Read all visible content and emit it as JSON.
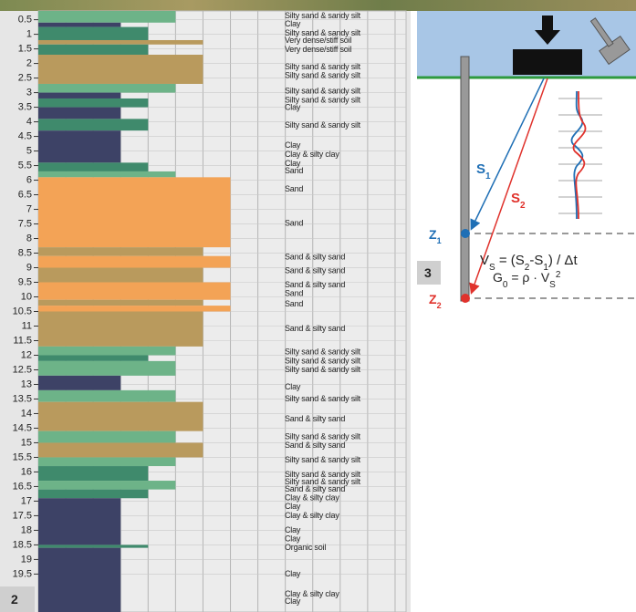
{
  "chart_data": {
    "type": "bar",
    "ylim": [
      0.2,
      20.8
    ],
    "yticks": [
      0.5,
      1,
      1.5,
      2,
      2.5,
      3,
      3.5,
      4,
      4.5,
      5,
      5.5,
      6,
      6.5,
      7,
      7.5,
      8,
      8.5,
      9,
      9.5,
      10,
      10.5,
      11,
      11.5,
      12,
      12.5,
      13,
      13.5,
      14,
      14.5,
      15,
      15.5,
      16,
      16.5,
      17,
      17.5,
      18,
      18.5,
      19,
      19.5
    ],
    "xlim": [
      0,
      13.4
    ],
    "xticks": [
      1,
      2,
      3,
      4,
      5,
      6,
      7,
      8,
      9,
      10,
      11,
      12,
      13
    ],
    "grid": true,
    "zones": [
      {
        "value": 3,
        "color": "#3d4266"
      },
      {
        "value": 4,
        "color": "#3f8a6c"
      },
      {
        "value": 5,
        "color": "#6db388"
      },
      {
        "value": 6,
        "color": "#b99a5d"
      },
      {
        "value": 7,
        "color": "#f3a356"
      }
    ],
    "layers": [
      {
        "top": 0.2,
        "bottom": 0.6,
        "zone": 5
      },
      {
        "top": 0.6,
        "bottom": 0.75,
        "zone": 3
      },
      {
        "top": 0.75,
        "bottom": 1.2,
        "zone": 4
      },
      {
        "top": 1.2,
        "bottom": 1.35,
        "zone": 6
      },
      {
        "top": 1.35,
        "bottom": 1.7,
        "zone": 4
      },
      {
        "top": 1.7,
        "bottom": 2.7,
        "zone": 6
      },
      {
        "top": 2.7,
        "bottom": 3.0,
        "zone": 5
      },
      {
        "top": 3.0,
        "bottom": 3.2,
        "zone": 3
      },
      {
        "top": 3.2,
        "bottom": 3.5,
        "zone": 4
      },
      {
        "top": 3.5,
        "bottom": 3.9,
        "zone": 3
      },
      {
        "top": 3.9,
        "bottom": 4.3,
        "zone": 4
      },
      {
        "top": 4.3,
        "bottom": 5.4,
        "zone": 3
      },
      {
        "top": 5.4,
        "bottom": 5.7,
        "zone": 4
      },
      {
        "top": 5.7,
        "bottom": 5.9,
        "zone": 5
      },
      {
        "top": 5.9,
        "bottom": 8.3,
        "zone": 7
      },
      {
        "top": 8.3,
        "bottom": 8.6,
        "zone": 6
      },
      {
        "top": 8.6,
        "bottom": 9.0,
        "zone": 7
      },
      {
        "top": 9.0,
        "bottom": 9.5,
        "zone": 6
      },
      {
        "top": 9.5,
        "bottom": 10.1,
        "zone": 7
      },
      {
        "top": 10.1,
        "bottom": 10.3,
        "zone": 6
      },
      {
        "top": 10.3,
        "bottom": 10.5,
        "zone": 7
      },
      {
        "top": 10.5,
        "bottom": 11.7,
        "zone": 6
      },
      {
        "top": 11.7,
        "bottom": 12.0,
        "zone": 5
      },
      {
        "top": 12.0,
        "bottom": 12.2,
        "zone": 4
      },
      {
        "top": 12.2,
        "bottom": 12.7,
        "zone": 5
      },
      {
        "top": 12.7,
        "bottom": 13.2,
        "zone": 3
      },
      {
        "top": 13.2,
        "bottom": 13.6,
        "zone": 5
      },
      {
        "top": 13.6,
        "bottom": 14.6,
        "zone": 6
      },
      {
        "top": 14.6,
        "bottom": 15.0,
        "zone": 5
      },
      {
        "top": 15.0,
        "bottom": 15.5,
        "zone": 6
      },
      {
        "top": 15.5,
        "bottom": 15.8,
        "zone": 5
      },
      {
        "top": 15.8,
        "bottom": 16.3,
        "zone": 4
      },
      {
        "top": 16.3,
        "bottom": 16.6,
        "zone": 5
      },
      {
        "top": 16.6,
        "bottom": 16.9,
        "zone": 4
      },
      {
        "top": 16.9,
        "bottom": 18.5,
        "zone": 3
      },
      {
        "top": 18.5,
        "bottom": 18.6,
        "zone": 4
      },
      {
        "top": 18.6,
        "bottom": 20.8,
        "zone": 3
      }
    ],
    "annotations": [
      {
        "depth": 0.37,
        "text": "Silty sand & sandy silt"
      },
      {
        "depth": 0.66,
        "text": "Clay"
      },
      {
        "depth": 0.97,
        "text": "Silty sand & sandy silt"
      },
      {
        "depth": 1.22,
        "text": "Very dense/stiff soil"
      },
      {
        "depth": 1.54,
        "text": "Very dense/stiff soil"
      },
      {
        "depth": 2.13,
        "text": "Silty sand & sandy silt"
      },
      {
        "depth": 2.42,
        "text": "Silty sand & sandy silt"
      },
      {
        "depth": 2.95,
        "text": "Silty sand & sandy silt"
      },
      {
        "depth": 3.27,
        "text": "Silty sand & sandy silt"
      },
      {
        "depth": 3.52,
        "text": "Clay"
      },
      {
        "depth": 4.12,
        "text": "Silty sand & sandy silt"
      },
      {
        "depth": 4.81,
        "text": "Clay"
      },
      {
        "depth": 5.12,
        "text": "Clay & silty clay"
      },
      {
        "depth": 5.44,
        "text": "Clay"
      },
      {
        "depth": 5.69,
        "text": "Sand"
      },
      {
        "depth": 6.32,
        "text": "Sand"
      },
      {
        "depth": 7.48,
        "text": "Sand"
      },
      {
        "depth": 8.64,
        "text": "Sand & silty sand"
      },
      {
        "depth": 9.12,
        "text": "Sand & silty sand"
      },
      {
        "depth": 9.59,
        "text": "Sand & silty sand"
      },
      {
        "depth": 9.9,
        "text": "Sand"
      },
      {
        "depth": 10.25,
        "text": "Sand"
      },
      {
        "depth": 11.1,
        "text": "Sand & silty sand"
      },
      {
        "depth": 11.9,
        "text": "Silty sand & sandy silt"
      },
      {
        "depth": 12.2,
        "text": "Silty sand & sandy silt"
      },
      {
        "depth": 12.5,
        "text": "Silty sand & sandy silt"
      },
      {
        "depth": 13.1,
        "text": "Clay"
      },
      {
        "depth": 13.5,
        "text": "Silty sand & sandy silt"
      },
      {
        "depth": 14.2,
        "text": "Sand & silty sand"
      },
      {
        "depth": 14.8,
        "text": "Silty sand & sandy silt"
      },
      {
        "depth": 15.1,
        "text": "Sand & silty sand"
      },
      {
        "depth": 15.6,
        "text": "Silty sand & sandy silt"
      },
      {
        "depth": 16.1,
        "text": "Silty sand & sandy silt"
      },
      {
        "depth": 16.35,
        "text": "Silty sand & sandy silt"
      },
      {
        "depth": 16.6,
        "text": "Sand & silty sand"
      },
      {
        "depth": 16.9,
        "text": "Clay & silty clay"
      },
      {
        "depth": 17.2,
        "text": "Clay"
      },
      {
        "depth": 17.5,
        "text": "Clay & silty clay"
      },
      {
        "depth": 18.0,
        "text": "Clay"
      },
      {
        "depth": 18.3,
        "text": "Clay"
      },
      {
        "depth": 18.6,
        "text": "Organic soil"
      },
      {
        "depth": 19.5,
        "text": "Clay"
      },
      {
        "depth": 20.2,
        "text": "Clay & silty clay"
      },
      {
        "depth": 20.45,
        "text": "Clay"
      }
    ],
    "panel_label": "2"
  },
  "diagram": {
    "panel_label": "3",
    "s1": {
      "main": "S",
      "sub": "1",
      "color": "#1f6fb5"
    },
    "s2": {
      "main": "S",
      "sub": "2",
      "color": "#e0322c"
    },
    "z1": {
      "main": "Z",
      "sub": "1",
      "color": "#1f6fb5"
    },
    "z2": {
      "main": "Z",
      "sub": "2",
      "color": "#e0322c"
    },
    "equation_1": [
      {
        "text": "V"
      },
      {
        "text": "S",
        "sub": true
      },
      {
        "text": " = (S"
      },
      {
        "text": "2",
        "sub": true
      },
      {
        "text": "-S"
      },
      {
        "text": "1",
        "sub": true
      },
      {
        "text": ") / Δt"
      }
    ],
    "equation_2": [
      {
        "text": "G"
      },
      {
        "text": "0",
        "sub": true
      },
      {
        "text": " = ρ · V"
      },
      {
        "text": "S",
        "sub": true
      },
      {
        "text": "2",
        "sup": true
      }
    ]
  }
}
